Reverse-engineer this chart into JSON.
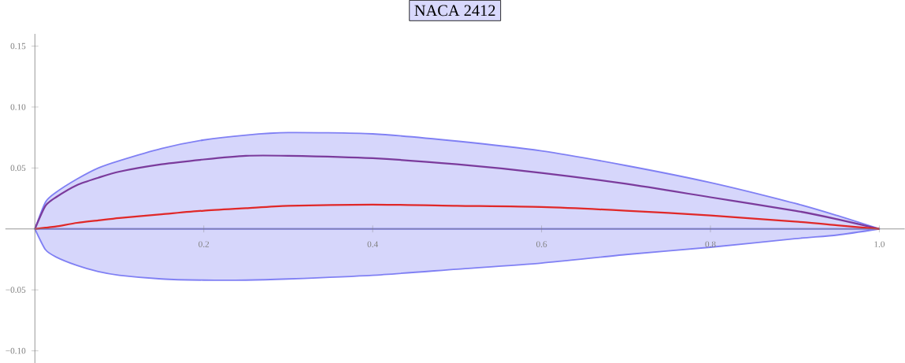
{
  "chart_data": {
    "type": "line",
    "title": "NACA 2412",
    "x": [
      0,
      0.0125,
      0.025,
      0.05,
      0.075,
      0.1,
      0.15,
      0.2,
      0.25,
      0.3,
      0.4,
      0.5,
      0.6,
      0.7,
      0.8,
      0.9,
      0.95,
      1.0
    ],
    "series": [
      {
        "type": "area",
        "color": "#8080f4",
        "values": [
          0,
          0.022,
          0.03,
          0.041,
          0.05,
          0.056,
          0.066,
          0.073,
          0.077,
          0.079,
          0.078,
          0.072,
          0.064,
          0.052,
          0.038,
          0.021,
          0.011,
          0
        ]
      },
      {
        "type": "area",
        "color": "#8080f4",
        "values": [
          0,
          -0.017,
          -0.023,
          -0.03,
          -0.035,
          -0.038,
          -0.041,
          -0.042,
          -0.042,
          -0.041,
          -0.038,
          -0.033,
          -0.028,
          -0.021,
          -0.015,
          -0.008,
          -0.005,
          0
        ]
      },
      {
        "color": "#7b3b9c",
        "values": [
          0,
          0.019,
          0.026,
          0.036,
          0.042,
          0.047,
          0.053,
          0.057,
          0.06,
          0.06,
          0.058,
          0.053,
          0.046,
          0.037,
          0.026,
          0.015,
          0.008,
          0
        ]
      },
      {
        "color": "#e02828",
        "values": [
          0,
          0.001,
          0.002,
          0.005,
          0.007,
          0.009,
          0.012,
          0.015,
          0.017,
          0.019,
          0.02,
          0.019,
          0.018,
          0.015,
          0.011,
          0.006,
          0.003,
          0
        ]
      }
    ],
    "xlim": [
      -0.035,
      1.03
    ],
    "ylim": [
      -0.11,
      0.16
    ],
    "xticks": [
      {
        "value": 0.2,
        "label": "0.2"
      },
      {
        "value": 0.4,
        "label": "0.4"
      },
      {
        "value": 0.6,
        "label": "0.6"
      },
      {
        "value": 0.8,
        "label": "0.8"
      },
      {
        "value": 1.0,
        "label": "1.0"
      }
    ],
    "yticks": [
      {
        "value": -0.1,
        "label": "−0.10"
      },
      {
        "value": -0.05,
        "label": "−0.05"
      },
      {
        "value": 0.05,
        "label": "0.05"
      },
      {
        "value": 0.1,
        "label": "0.10"
      },
      {
        "value": 0.15,
        "label": "0.15"
      }
    ],
    "grid": false
  }
}
